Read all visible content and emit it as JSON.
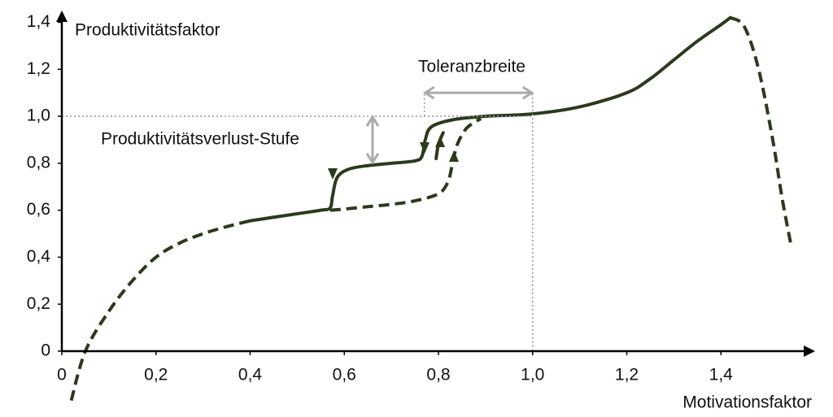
{
  "chart_data": {
    "type": "line",
    "ylabel": "Produktivitätsfaktor",
    "xlabel": "Motivationsfaktor",
    "annotations": {
      "tolerance": {
        "text": "Toleranzbreite",
        "x": [
          0.77,
          1.0
        ],
        "y": 1.1
      },
      "step": {
        "text": "Produktivitätsverlust-Stufe",
        "x": 0.66,
        "y": [
          0.8,
          1.0
        ]
      },
      "reference": {
        "x": 1.0,
        "y": 1.0
      }
    },
    "xlim": [
      0,
      1.6
    ],
    "ylim": [
      0,
      1.45
    ],
    "xticks": [
      0,
      {
        "value": 0.2,
        "label": "0,2"
      },
      {
        "value": 0.4,
        "label": "0,4"
      },
      {
        "value": 0.6,
        "label": "0,6"
      },
      {
        "value": 0.8,
        "label": "0,8"
      },
      {
        "value": 1.0,
        "label": "1,0"
      },
      {
        "value": 1.2,
        "label": "1,2"
      },
      {
        "value": 1.4,
        "label": "1,4"
      }
    ],
    "yticks": [
      0,
      {
        "value": 0.2,
        "label": "0,2"
      },
      {
        "value": 0.4,
        "label": "0,4"
      },
      {
        "value": 0.6,
        "label": "0,6"
      },
      {
        "value": 0.8,
        "label": "0,8"
      },
      {
        "value": 1.0,
        "label": "1,0"
      },
      {
        "value": 1.2,
        "label": "1,2"
      },
      {
        "value": 1.4,
        "label": "1,4"
      }
    ],
    "series": [
      {
        "color": "#2c3a1c",
        "dashed": true,
        "x": [
          0.02,
          0.05,
          0.1,
          0.15,
          0.2,
          0.25,
          0.3,
          0.35,
          0.4
        ],
        "values": [
          -0.21,
          0,
          0.17,
          0.3,
          0.4,
          0.46,
          0.5,
          0.53,
          0.555
        ]
      },
      {
        "color": "#2c3a1c",
        "dashed": false,
        "x": [
          0.4,
          0.45,
          0.5,
          0.55,
          0.57,
          0.575,
          0.585,
          0.61,
          0.65,
          0.7,
          0.75,
          0.765,
          0.772,
          0.785,
          0.83,
          0.9,
          1.0,
          1.1,
          1.2,
          1.25,
          1.3,
          1.35,
          1.4,
          1.42
        ],
        "values": [
          0.555,
          0.57,
          0.585,
          0.6,
          0.61,
          0.66,
          0.74,
          0.775,
          0.79,
          0.8,
          0.81,
          0.83,
          0.9,
          0.955,
          0.985,
          1.0,
          1.01,
          1.04,
          1.1,
          1.16,
          1.24,
          1.32,
          1.39,
          1.42
        ]
      },
      {
        "color": "#2c3a1c",
        "dashed": false,
        "x": [
          0.795,
          0.8,
          0.81
        ],
        "values": [
          0.82,
          0.88,
          0.93
        ]
      },
      {
        "color": "#2c3a1c",
        "dashed": true,
        "x": [
          0.57,
          0.6,
          0.65,
          0.7,
          0.75,
          0.8,
          0.82,
          0.83,
          0.84,
          0.86,
          0.89
        ],
        "values": [
          0.6,
          0.605,
          0.615,
          0.625,
          0.64,
          0.67,
          0.72,
          0.8,
          0.88,
          0.95,
          0.99
        ]
      },
      {
        "color": "#2c3a1c",
        "dashed": true,
        "x": [
          1.42,
          1.45,
          1.48,
          1.51,
          1.53,
          1.55
        ],
        "values": [
          1.42,
          1.38,
          1.2,
          0.9,
          0.65,
          0.44
        ]
      }
    ]
  }
}
